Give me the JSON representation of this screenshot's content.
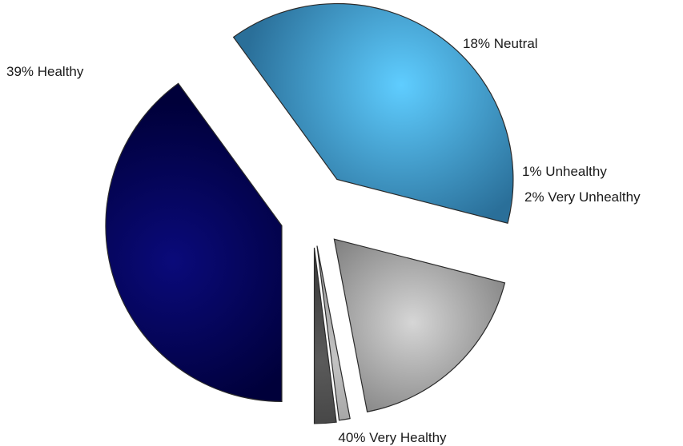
{
  "chart_data": {
    "type": "pie",
    "exploded": true,
    "slices": [
      {
        "label": "40% Very Healthy",
        "category": "Very Healthy",
        "value": 40,
        "color_light": "#0a0a7a",
        "color_dark": "#00003a"
      },
      {
        "label": "39% Healthy",
        "category": "Healthy",
        "value": 39,
        "color_light": "#5fcdff",
        "color_dark": "#2a6f99"
      },
      {
        "label": "18% Neutral",
        "category": "Neutral",
        "value": 18,
        "color_light": "#d6d6d6",
        "color_dark": "#5c5c5c"
      },
      {
        "label": "1% Unhealthy",
        "category": "Unhealthy",
        "value": 1,
        "color_light": "#c4c4c4",
        "color_dark": "#7a7a7a"
      },
      {
        "label": "2% Very Unhealthy",
        "category": "Very Unhealthy",
        "value": 2,
        "color_light": "#5a5a5a",
        "color_dark": "#2a2a2a"
      }
    ]
  }
}
